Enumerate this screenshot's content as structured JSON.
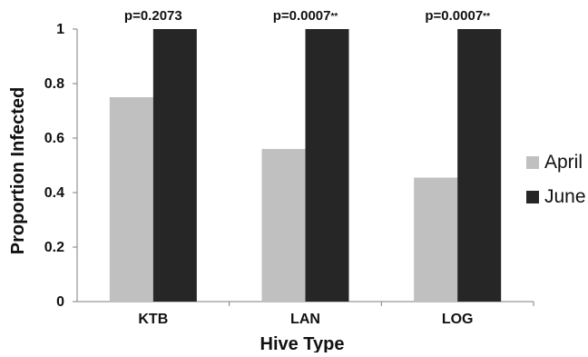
{
  "chart_data": {
    "type": "bar",
    "xlabel": "Hive Type",
    "ylabel": "Proportion Infected",
    "ylim": [
      0,
      1
    ],
    "yticks": [
      0,
      0.2,
      0.4,
      0.6,
      0.8,
      1
    ],
    "ytick_labels": [
      "0",
      "0.2",
      "0.4",
      "0.6",
      "0.8",
      "1"
    ],
    "categories": [
      "KTB",
      "LAN",
      "LOG"
    ],
    "series": [
      {
        "name": "April",
        "values": [
          0.75,
          0.56,
          0.455
        ],
        "color": "#c0c0c0"
      },
      {
        "name": "June",
        "values": [
          1.0,
          1.0,
          1.0
        ],
        "color": "#262626"
      }
    ],
    "annotations": [
      {
        "category": "KTB",
        "label": "p=0.2073",
        "marker": ""
      },
      {
        "category": "LAN",
        "label": "p=0.0007",
        "marker": "**"
      },
      {
        "category": "LOG",
        "label": "p=0.0007",
        "marker": "**"
      }
    ],
    "grid": false,
    "legend_position": "right"
  }
}
